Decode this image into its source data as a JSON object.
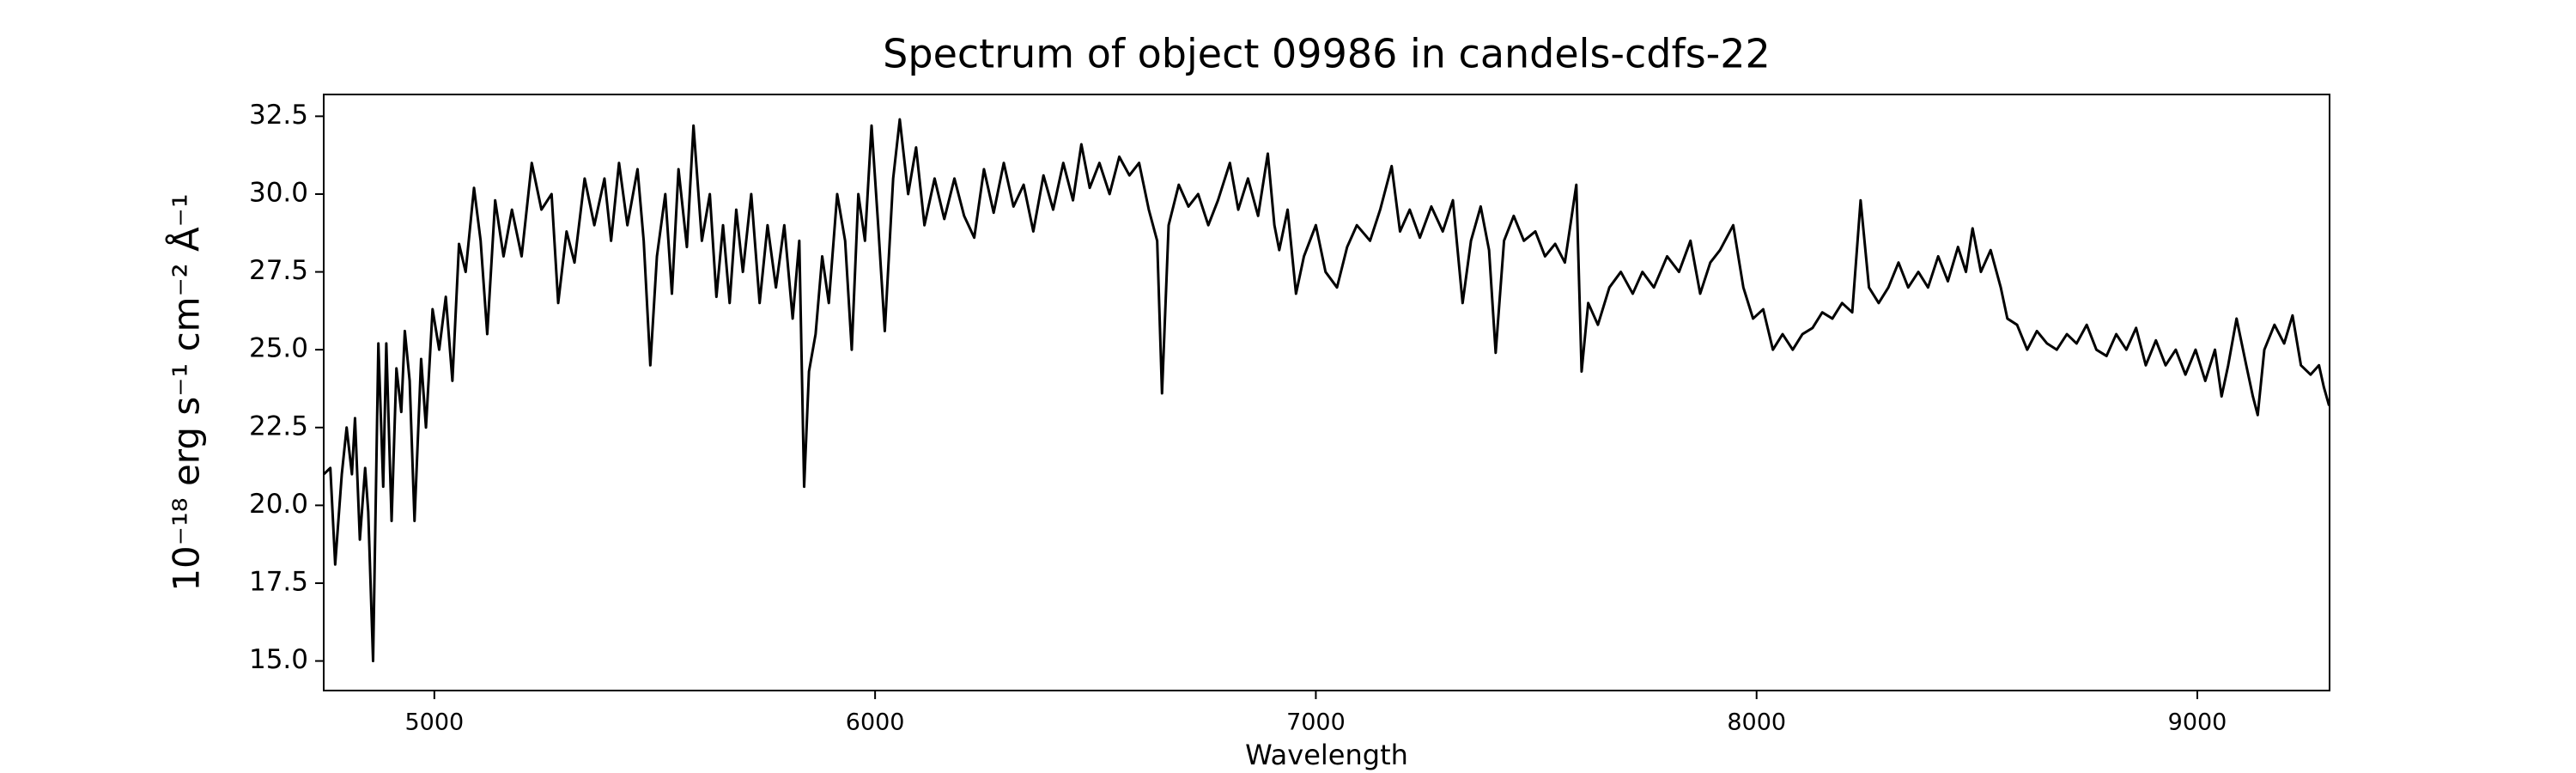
{
  "chart_data": {
    "type": "line",
    "title": "Spectrum of object 09986 in candels-cdfs-22",
    "xlabel": "Wavelength",
    "ylabel": "10⁻¹⁸ erg s⁻¹ cm⁻² Å⁻¹",
    "color": "#000000",
    "grid": false,
    "xlim": [
      4749,
      9300
    ],
    "ylim": [
      14.05,
      33.2
    ],
    "xticks": [
      5000,
      6000,
      7000,
      8000,
      9000
    ],
    "yticks": [
      {
        "value": 15,
        "label": "15.0"
      },
      17.5,
      {
        "value": 20,
        "label": "20.0"
      },
      22.5,
      {
        "value": 25,
        "label": "25.0"
      },
      27.5,
      {
        "value": 30,
        "label": "30.0"
      },
      32.5
    ],
    "x": [
      4749,
      4764,
      4775,
      4790,
      4801,
      4813,
      4820,
      4831,
      4843,
      4850,
      4861,
      4873,
      4884,
      4891,
      4903,
      4914,
      4925,
      4933,
      4944,
      4955,
      4970,
      4981,
      4996,
      5011,
      5026,
      5041,
      5056,
      5071,
      5090,
      5105,
      5120,
      5138,
      5157,
      5176,
      5198,
      5221,
      5243,
      5266,
      5281,
      5300,
      5318,
      5341,
      5363,
      5386,
      5401,
      5419,
      5438,
      5461,
      5475,
      5490,
      5505,
      5524,
      5539,
      5554,
      5573,
      5588,
      5607,
      5625,
      5640,
      5655,
      5670,
      5685,
      5700,
      5719,
      5738,
      5756,
      5775,
      5794,
      5813,
      5828,
      5839,
      5850,
      5865,
      5880,
      5895,
      5914,
      5932,
      5947,
      5962,
      5977,
      5992,
      6007,
      6022,
      6041,
      6056,
      6075,
      6093,
      6112,
      6135,
      6157,
      6180,
      6202,
      6225,
      6247,
      6269,
      6292,
      6314,
      6337,
      6359,
      6382,
      6404,
      6427,
      6449,
      6468,
      6487,
      6509,
      6532,
      6554,
      6577,
      6599,
      6621,
      6640,
      6651,
      6666,
      6689,
      6711,
      6733,
      6756,
      6778,
      6805,
      6824,
      6846,
      6869,
      6891,
      6906,
      6917,
      6936,
      6955,
      6973,
      7000,
      7022,
      7048,
      7071,
      7093,
      7123,
      7146,
      7172,
      7191,
      7213,
      7236,
      7262,
      7288,
      7311,
      7333,
      7352,
      7374,
      7393,
      7408,
      7427,
      7449,
      7472,
      7498,
      7520,
      7543,
      7565,
      7591,
      7603,
      7618,
      7640,
      7666,
      7692,
      7719,
      7741,
      7767,
      7797,
      7824,
      7850,
      7872,
      7895,
      7917,
      7947,
      7970,
      7992,
      8015,
      8037,
      8059,
      8082,
      8104,
      8127,
      8149,
      8172,
      8194,
      8217,
      8236,
      8255,
      8277,
      8299,
      8322,
      8344,
      8367,
      8389,
      8412,
      8434,
      8457,
      8475,
      8490,
      8509,
      8531,
      8554,
      8569,
      8591,
      8614,
      8636,
      8659,
      8681,
      8704,
      8726,
      8749,
      8771,
      8794,
      8816,
      8839,
      8861,
      8883,
      8906,
      8928,
      8951,
      8973,
      8996,
      9018,
      9040,
      9055,
      9070,
      9089,
      9111,
      9126,
      9137,
      9152,
      9175,
      9197,
      9216,
      9235,
      9257,
      9276,
      9287,
      9299
    ],
    "values": [
      21.0,
      21.2,
      18.1,
      21.0,
      22.5,
      21.0,
      22.8,
      18.9,
      21.2,
      19.8,
      15.0,
      25.2,
      20.6,
      25.2,
      19.5,
      24.4,
      23.0,
      25.6,
      24.0,
      19.5,
      24.7,
      22.5,
      26.3,
      25.0,
      26.7,
      24.0,
      28.4,
      27.5,
      30.2,
      28.5,
      25.5,
      29.8,
      28.0,
      29.5,
      28.0,
      31.0,
      29.5,
      30.0,
      26.5,
      28.8,
      27.8,
      30.5,
      29.0,
      30.5,
      28.5,
      31.0,
      29.0,
      30.8,
      28.5,
      24.5,
      28.0,
      30.0,
      26.8,
      30.8,
      28.3,
      32.2,
      28.5,
      30.0,
      26.7,
      29.0,
      26.5,
      29.5,
      27.5,
      30.0,
      26.5,
      29.0,
      27.0,
      29.0,
      26.0,
      28.5,
      20.6,
      24.3,
      25.5,
      28.0,
      26.5,
      30.0,
      28.5,
      25.0,
      30.0,
      28.5,
      32.2,
      29.0,
      25.6,
      30.5,
      32.4,
      30.0,
      31.5,
      29.0,
      30.5,
      29.2,
      30.5,
      29.3,
      28.6,
      30.8,
      29.4,
      31.0,
      29.6,
      30.3,
      28.8,
      30.6,
      29.5,
      31.0,
      29.8,
      31.6,
      30.2,
      31.0,
      30.0,
      31.2,
      30.6,
      31.0,
      29.5,
      28.5,
      23.6,
      29.0,
      30.3,
      29.6,
      30.0,
      29.0,
      29.8,
      31.0,
      29.5,
      30.5,
      29.3,
      31.3,
      29.0,
      28.2,
      29.5,
      26.8,
      28.0,
      29.0,
      27.5,
      27.0,
      28.3,
      29.0,
      28.5,
      29.5,
      30.9,
      28.8,
      29.5,
      28.6,
      29.6,
      28.8,
      29.8,
      26.5,
      28.5,
      29.6,
      28.2,
      24.9,
      28.5,
      29.3,
      28.5,
      28.8,
      28.0,
      28.4,
      27.8,
      30.3,
      24.3,
      26.5,
      25.8,
      27.0,
      27.5,
      26.8,
      27.5,
      27.0,
      28.0,
      27.5,
      28.5,
      26.8,
      27.8,
      28.2,
      29.0,
      27.0,
      26.0,
      26.3,
      25.0,
      25.5,
      25.0,
      25.5,
      25.7,
      26.2,
      26.0,
      26.5,
      26.2,
      29.8,
      27.0,
      26.5,
      27.0,
      27.8,
      27.0,
      27.5,
      27.0,
      28.0,
      27.2,
      28.3,
      27.5,
      28.9,
      27.5,
      28.2,
      27.0,
      26.0,
      25.8,
      25.0,
      25.6,
      25.2,
      25.0,
      25.5,
      25.2,
      25.8,
      25.0,
      24.8,
      25.5,
      25.0,
      25.7,
      24.5,
      25.3,
      24.5,
      25.0,
      24.2,
      25.0,
      24.0,
      25.0,
      23.5,
      24.5,
      26.0,
      24.5,
      23.5,
      22.9,
      25.0,
      25.8,
      25.2,
      26.1,
      24.5,
      24.2,
      24.5,
      23.8,
      23.2
    ]
  }
}
